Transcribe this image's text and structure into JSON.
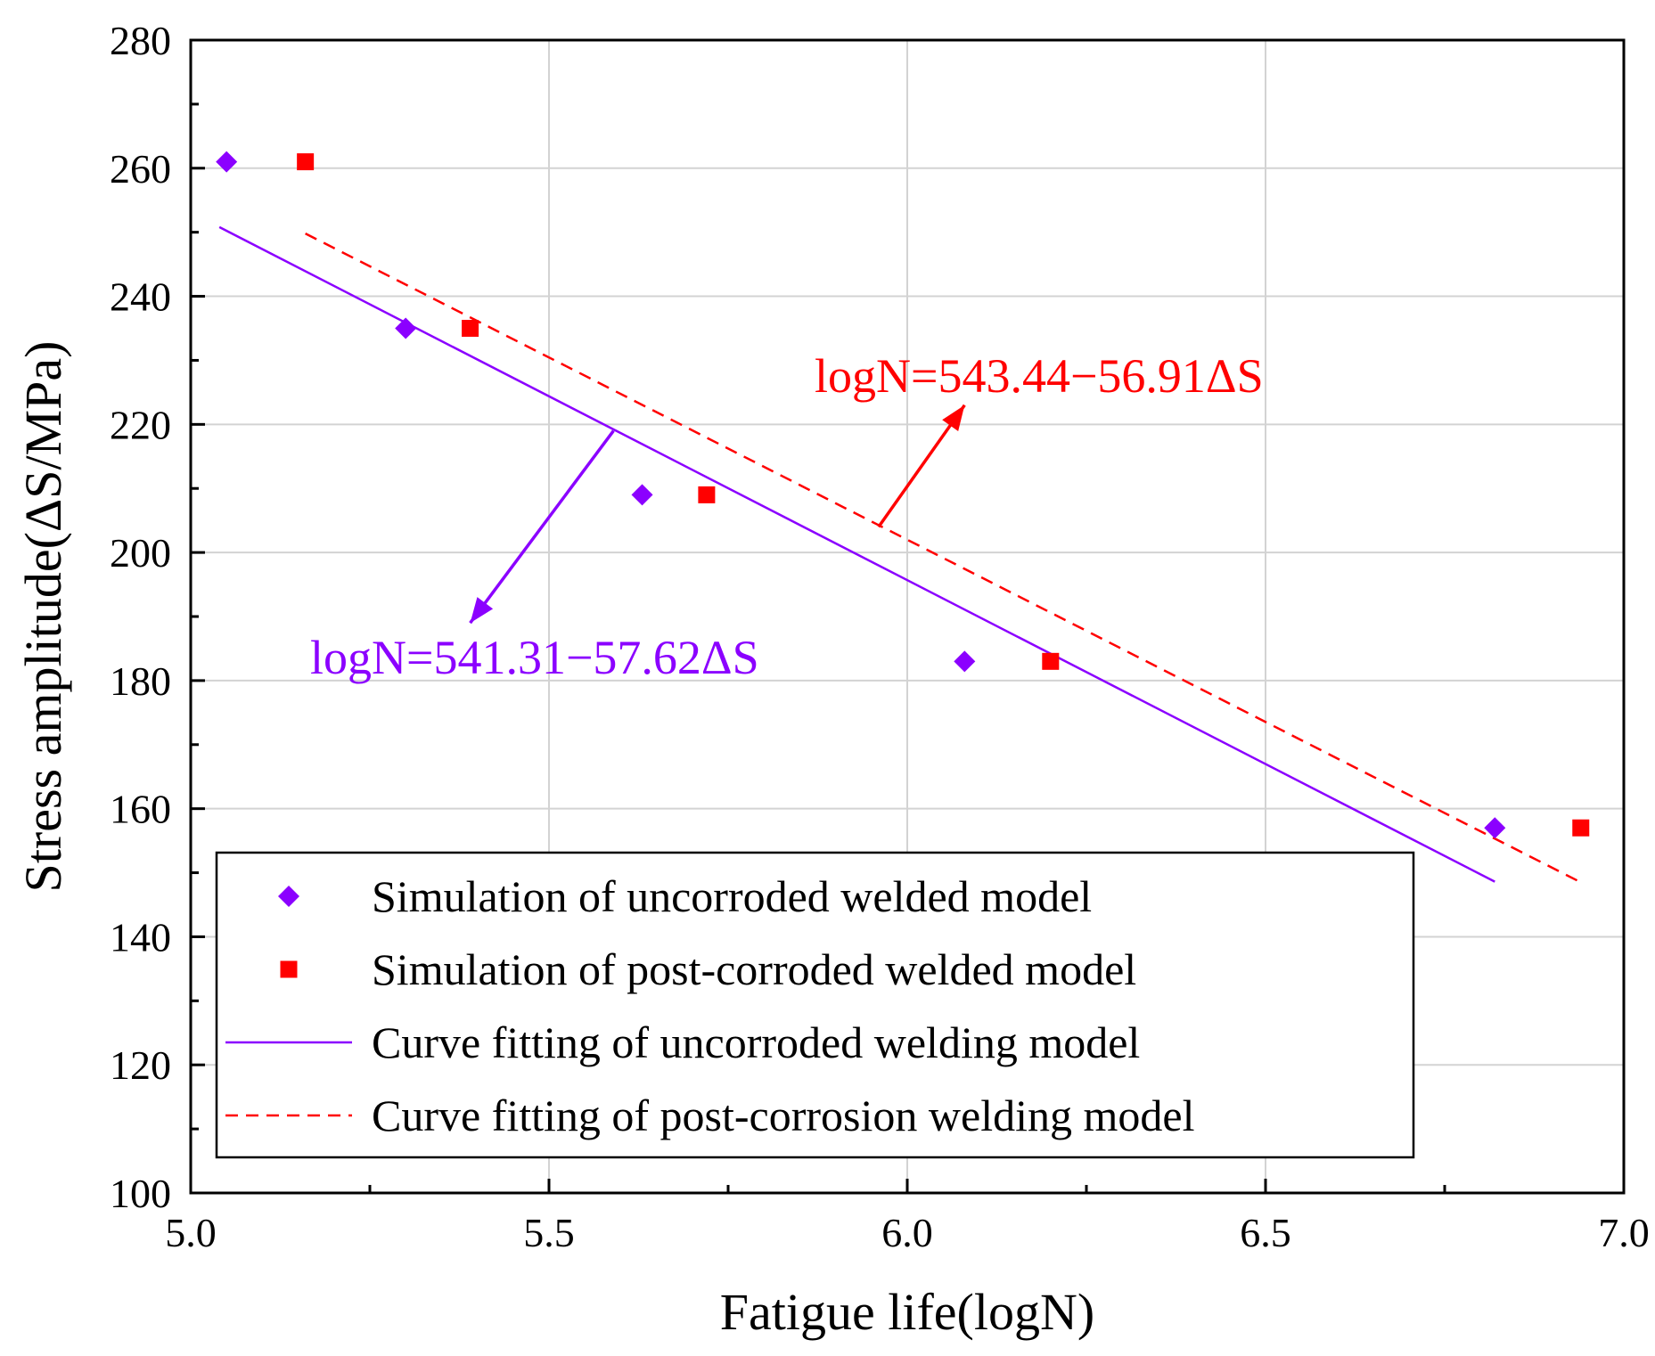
{
  "chart_data": {
    "type": "scatter",
    "title": "",
    "xlabel": "Fatigue life(logN)",
    "ylabel": "Stress amplitude(ΔS/MPa)",
    "xlim": [
      5.0,
      7.0
    ],
    "ylim": [
      100,
      280
    ],
    "xticks": [
      5.0,
      5.5,
      6.0,
      6.5,
      7.0
    ],
    "xtick_labels": [
      "5.0",
      "5.5",
      "6.0",
      "6.5",
      "7.0"
    ],
    "yticks": [
      100,
      120,
      140,
      160,
      180,
      200,
      220,
      240,
      260,
      280
    ],
    "ytick_labels": [
      "100",
      "120",
      "140",
      "160",
      "180",
      "200",
      "220",
      "240",
      "260",
      "280"
    ],
    "grid": true,
    "legend_position": "bottom-left",
    "series": [
      {
        "name": "Simulation of uncorroded welded model",
        "kind": "scatter",
        "marker": "diamond",
        "color": "#8B00FF",
        "x": [
          5.05,
          5.3,
          5.63,
          6.08,
          6.82
        ],
        "y": [
          261,
          235,
          209,
          183,
          157
        ]
      },
      {
        "name": "Simulation of post-corroded welded model",
        "kind": "scatter",
        "marker": "square",
        "color": "#FF0000",
        "x": [
          5.16,
          5.39,
          5.72,
          6.2,
          6.94
        ],
        "y": [
          261,
          235,
          209,
          183,
          157
        ]
      },
      {
        "name": "Curve fitting of uncorroded welding model",
        "kind": "line",
        "dash": "solid",
        "color": "#8B00FF",
        "x": [
          5.04,
          6.82
        ],
        "y": [
          250.8,
          148.6
        ]
      },
      {
        "name": "Curve fitting of post-corrosion welding model",
        "kind": "line",
        "dash": "dashed",
        "color": "#FF0000",
        "x": [
          5.16,
          6.94
        ],
        "y": [
          249.8,
          148.5
        ]
      }
    ],
    "annotations": [
      {
        "id": "uncorroded-equation",
        "text": "logN=541.31−57.62ΔS",
        "color": "#8B00FF",
        "arrow_from": [
          5.59,
          219
        ],
        "arrow_to": [
          5.39,
          189
        ]
      },
      {
        "id": "post-corroded-equation",
        "text": "logN=543.44−56.91ΔS",
        "color": "#FF0000",
        "arrow_from": [
          5.96,
          204
        ],
        "arrow_to": [
          6.08,
          223
        ]
      }
    ]
  }
}
